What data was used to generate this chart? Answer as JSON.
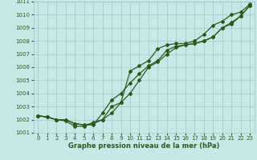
{
  "x": [
    0,
    1,
    2,
    3,
    4,
    5,
    6,
    7,
    8,
    9,
    10,
    11,
    12,
    13,
    14,
    15,
    16,
    17,
    18,
    19,
    20,
    21,
    22,
    23
  ],
  "line1": [
    1002.3,
    1002.2,
    1002.0,
    1001.9,
    1001.5,
    1001.5,
    1001.8,
    1002.0,
    1003.0,
    1003.3,
    1005.7,
    1006.1,
    1006.5,
    1007.4,
    1007.7,
    1007.8,
    1007.8,
    1008.0,
    1008.5,
    1009.2,
    1009.5,
    1010.0,
    1010.2,
    1010.8
  ],
  "line2": [
    1002.3,
    1002.2,
    1002.0,
    1002.0,
    1001.7,
    1001.6,
    1001.6,
    1002.5,
    1003.5,
    1004.0,
    1004.8,
    1005.5,
    1006.1,
    1006.5,
    1007.3,
    1007.6,
    1007.7,
    1007.8,
    1008.0,
    1008.3,
    1009.0,
    1009.4,
    1009.9,
    1010.7
  ],
  "line3": [
    1002.3,
    1002.2,
    1002.0,
    1002.0,
    1001.7,
    1001.6,
    1001.7,
    1002.0,
    1002.5,
    1003.3,
    1004.0,
    1005.0,
    1006.0,
    1006.4,
    1007.0,
    1007.5,
    1007.7,
    1007.8,
    1008.0,
    1008.3,
    1009.0,
    1009.3,
    1009.9,
    1010.7
  ],
  "bg_color": "#c8e8e8",
  "grid_color": "#a0c8c8",
  "line_color": "#2d5a1b",
  "marker": "D",
  "marker_size": 2.0,
  "xlabel": "Graphe pression niveau de la mer (hPa)",
  "ylim": [
    1001,
    1011
  ],
  "xlim": [
    -0.5,
    23.5
  ],
  "yticks": [
    1001,
    1002,
    1003,
    1004,
    1005,
    1006,
    1007,
    1008,
    1009,
    1010,
    1011
  ],
  "xticks": [
    0,
    1,
    2,
    3,
    4,
    5,
    6,
    7,
    8,
    9,
    10,
    11,
    12,
    13,
    14,
    15,
    16,
    17,
    18,
    19,
    20,
    21,
    22,
    23
  ],
  "tick_fontsize": 5.0,
  "label_fontsize": 6.0,
  "linewidth": 0.9
}
